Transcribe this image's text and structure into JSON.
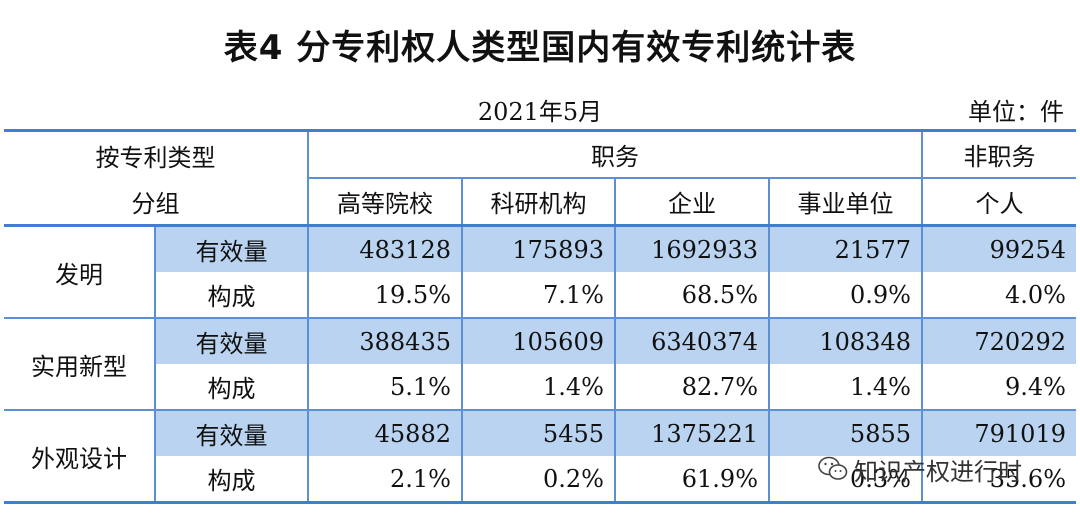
{
  "title": "表4  分专利权人类型国内有效专利统计表",
  "date": "2021年5月",
  "unit": "单位：件",
  "header": {
    "group_label_line1": "按专利类型",
    "group_label_line2": "分组",
    "service_label": "职务",
    "non_service_label": "非职务",
    "columns": [
      "高等院校",
      "科研机构",
      "企业",
      "事业单位",
      "个人"
    ]
  },
  "groups": [
    {
      "name": "发明",
      "rows": [
        {
          "label": "有效量",
          "values": [
            "483128",
            "175893",
            "1692933",
            "21577",
            "99254"
          ]
        },
        {
          "label": "构成",
          "values": [
            "19.5%",
            "7.1%",
            "68.5%",
            "0.9%",
            "4.0%"
          ]
        }
      ]
    },
    {
      "name": "实用新型",
      "rows": [
        {
          "label": "有效量",
          "values": [
            "388435",
            "105609",
            "6340374",
            "108348",
            "720292"
          ]
        },
        {
          "label": "构成",
          "values": [
            "5.1%",
            "1.4%",
            "82.7%",
            "1.4%",
            "9.4%"
          ]
        }
      ]
    },
    {
      "name": "外观设计",
      "rows": [
        {
          "label": "有效量",
          "values": [
            "45882",
            "5455",
            "1375221",
            "5855",
            "791019"
          ]
        },
        {
          "label": "构成",
          "values": [
            "2.1%",
            "0.2%",
            "61.9%",
            "0.3%",
            "35.6%"
          ]
        }
      ]
    }
  ],
  "watermark": {
    "text": "知识产权进行时",
    "icon": "wechat-icon"
  },
  "colors": {
    "shade": "#b9d3f0",
    "rule": "#3f7ed0"
  }
}
